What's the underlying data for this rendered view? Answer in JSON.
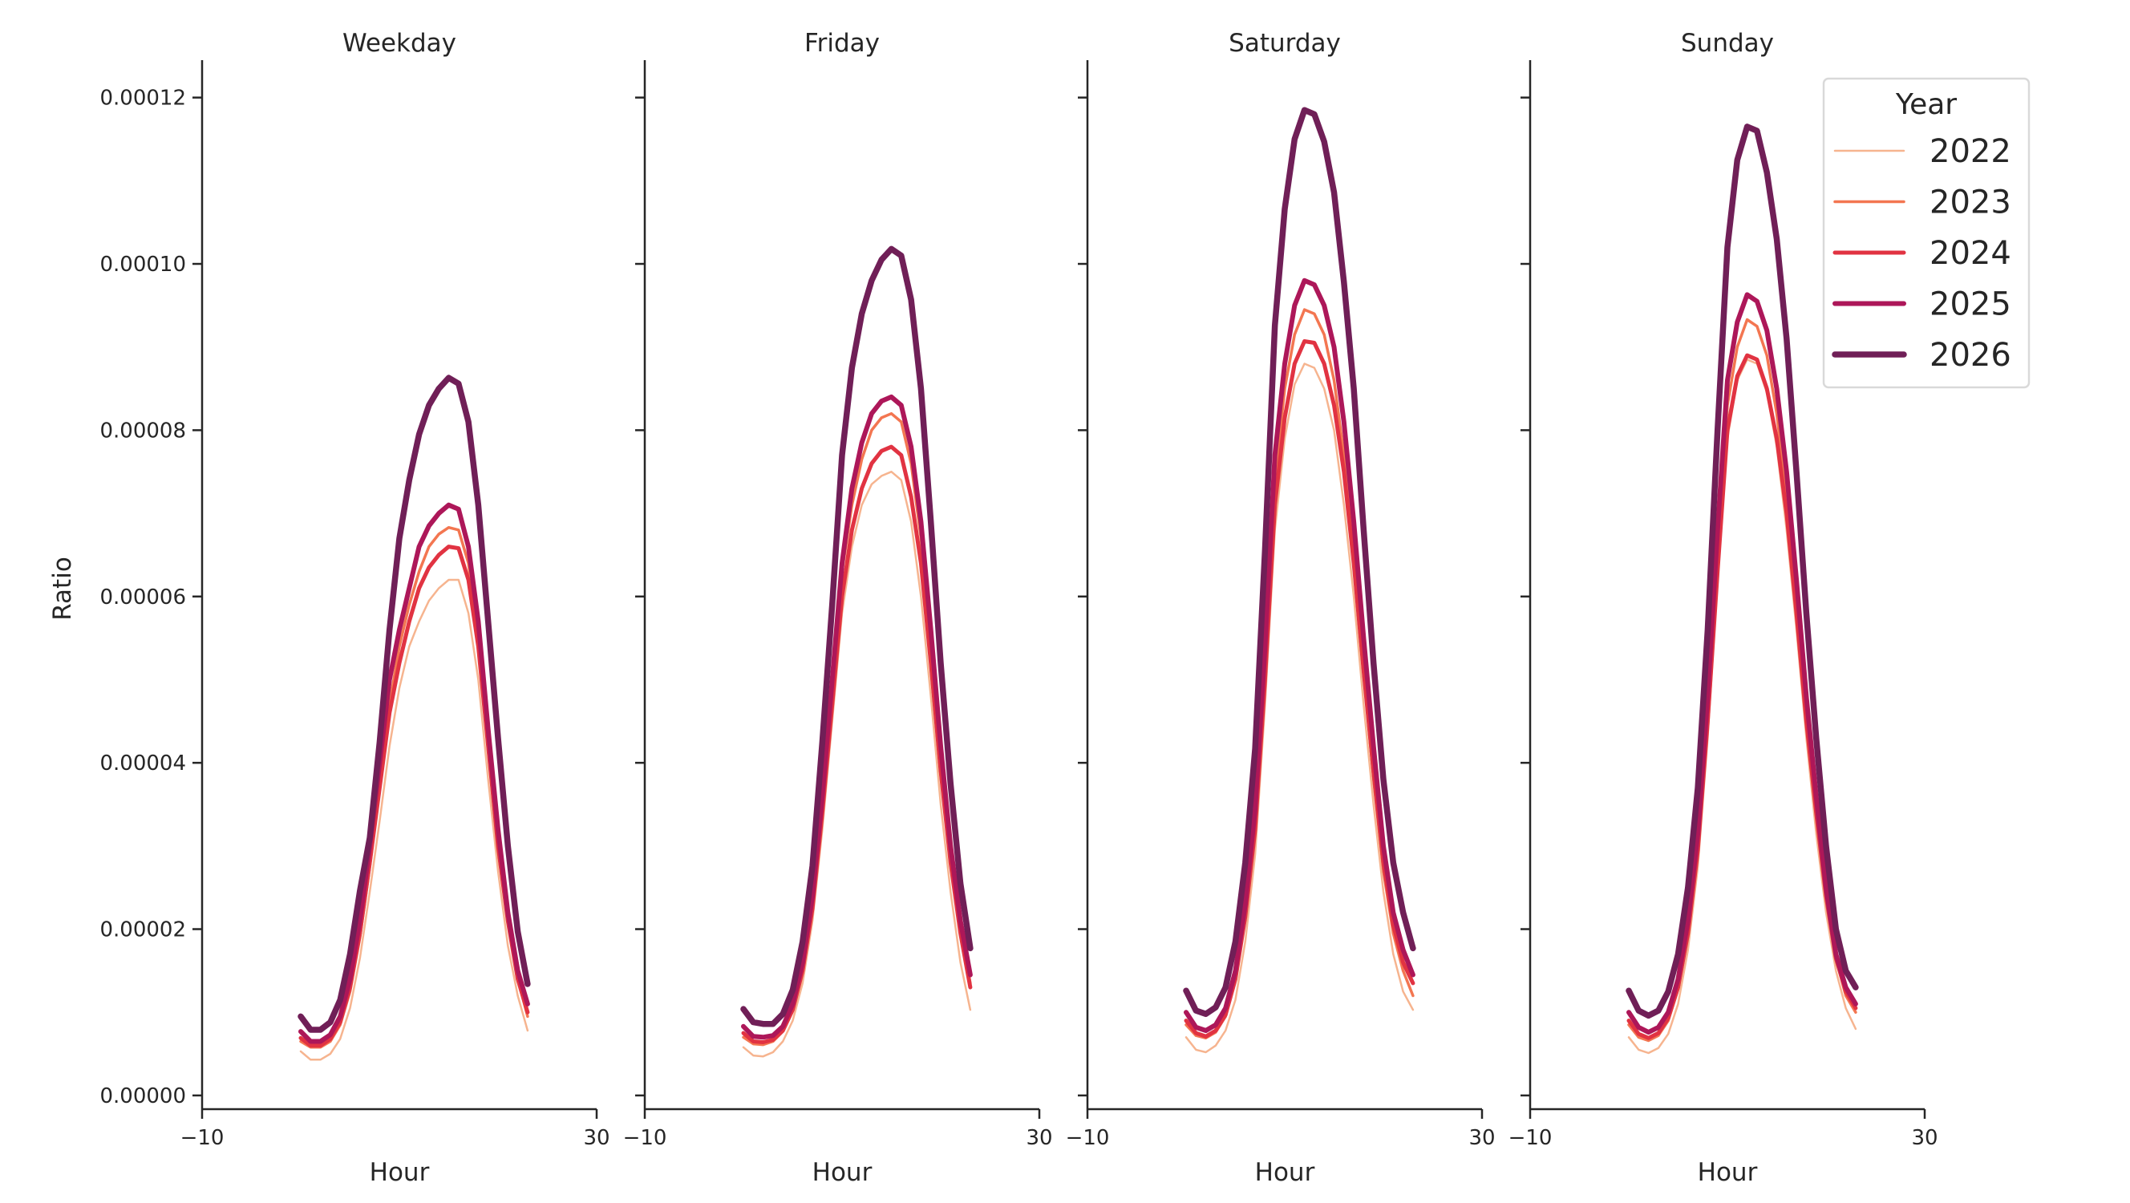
{
  "chart_data": {
    "type": "line",
    "ylabel": "Ratio",
    "xlabel": "Hour",
    "xlim": [
      -10,
      30
    ],
    "ylim": [
      -1.65e-06,
      0.0001245
    ],
    "xticks": [
      -10,
      30
    ],
    "xtick_labels": [
      "−10",
      "30"
    ],
    "yticks": [
      0,
      2e-05,
      4e-05,
      6e-05,
      8e-05,
      0.0001,
      0.00012
    ],
    "ytick_labels": [
      "0.00000",
      "0.00002",
      "0.00004",
      "0.00006",
      "0.00008",
      "0.00010",
      "0.00012"
    ],
    "grid": false,
    "x": [
      0,
      1,
      2,
      3,
      4,
      5,
      6,
      7,
      8,
      9,
      10,
      11,
      12,
      13,
      14,
      15,
      16,
      17,
      18,
      19,
      20,
      21,
      22,
      23
    ],
    "legend": {
      "title": "Year",
      "placement": "top-right"
    },
    "series_styles": [
      {
        "name": "2022",
        "color": "#f6b48f"
      },
      {
        "name": "2023",
        "color": "#f37651"
      },
      {
        "name": "2024",
        "color": "#e13342"
      },
      {
        "name": "2025",
        "color": "#ad1759"
      },
      {
        "name": "2026",
        "color": "#701f57"
      }
    ],
    "panels": [
      {
        "title": "Weekday",
        "series": [
          {
            "name": "2022",
            "values": [
              5.3e-06,
              4.3e-06,
              4.3e-06,
              5e-06,
              6.8e-06,
              1.05e-05,
              1.65e-05,
              2.45e-05,
              3.3e-05,
              4.2e-05,
              4.9e-05,
              5.4e-05,
              5.7e-05,
              5.95e-05,
              6.1e-05,
              6.2e-05,
              6.2e-05,
              5.8e-05,
              5e-05,
              3.8e-05,
              2.7e-05,
              1.8e-05,
              1.2e-05,
              7.8e-06
            ]
          },
          {
            "name": "2023",
            "values": [
              6.5e-06,
              5.8e-06,
              5.8e-06,
              6.5e-06,
              8.5e-06,
              1.25e-05,
              1.9e-05,
              2.75e-05,
              3.7e-05,
              4.7e-05,
              5.4e-05,
              5.9e-05,
              6.3e-05,
              6.6e-05,
              6.75e-05,
              6.83e-05,
              6.8e-05,
              6.4e-05,
              5.5e-05,
              4.2e-05,
              3e-05,
              2.1e-05,
              1.4e-05,
              9.5e-06
            ]
          },
          {
            "name": "2024",
            "values": [
              6.9e-06,
              6e-06,
              6e-06,
              6.8e-06,
              8.8e-06,
              1.3e-05,
              1.95e-05,
              2.8e-05,
              3.7e-05,
              4.6e-05,
              5.2e-05,
              5.7e-05,
              6.1e-05,
              6.35e-05,
              6.5e-05,
              6.6e-05,
              6.58e-05,
              6.2e-05,
              5.4e-05,
              4.2e-05,
              3e-05,
              2.1e-05,
              1.4e-05,
              1e-05
            ]
          },
          {
            "name": "2025",
            "values": [
              7.7e-06,
              6.5e-06,
              6.5e-06,
              7.3e-06,
              9.5e-06,
              1.4e-05,
              2.1e-05,
              3e-05,
              4e-05,
              5e-05,
              5.6e-05,
              6.1e-05,
              6.6e-05,
              6.85e-05,
              7e-05,
              7.1e-05,
              7.05e-05,
              6.6e-05,
              5.7e-05,
              4.4e-05,
              3.2e-05,
              2.2e-05,
              1.5e-05,
              1.1e-05
            ]
          },
          {
            "name": "2026",
            "values": [
              9.5e-06,
              7.9e-06,
              7.9e-06,
              8.8e-06,
              1.15e-05,
              1.7e-05,
              2.46e-05,
              3.1e-05,
              4.25e-05,
              5.6e-05,
              6.7e-05,
              7.4e-05,
              7.95e-05,
              8.3e-05,
              8.5e-05,
              8.63e-05,
              8.56e-05,
              8.1e-05,
              7.1e-05,
              5.7e-05,
              4.3e-05,
              3e-05,
              1.97e-05,
              1.34e-05
            ]
          }
        ]
      },
      {
        "title": "Friday",
        "series": [
          {
            "name": "2022",
            "values": [
              5.8e-06,
              4.8e-06,
              4.7e-06,
              5.2e-06,
              6.5e-06,
              9e-06,
              1.35e-05,
              2.1e-05,
              3.2e-05,
              4.5e-05,
              5.8e-05,
              6.6e-05,
              7.1e-05,
              7.35e-05,
              7.45e-05,
              7.5e-05,
              7.4e-05,
              6.9e-05,
              6e-05,
              4.8e-05,
              3.5e-05,
              2.45e-05,
              1.6e-05,
              1.03e-05
            ]
          },
          {
            "name": "2023",
            "values": [
              7e-06,
              6.2e-06,
              6.1e-06,
              6.5e-06,
              7.7e-06,
              1.03e-05,
              1.55e-05,
              2.35e-05,
              3.55e-05,
              4.9e-05,
              6.3e-05,
              7.1e-05,
              7.65e-05,
              8e-05,
              8.15e-05,
              8.2e-05,
              8.1e-05,
              7.6e-05,
              6.7e-05,
              5.4e-05,
              4e-05,
              2.85e-05,
              2e-05,
              1.35e-05
            ]
          },
          {
            "name": "2024",
            "values": [
              7.5e-06,
              6.5e-06,
              6.4e-06,
              6.7e-06,
              7.8e-06,
              1.03e-05,
              1.5e-05,
              2.25e-05,
              3.4e-05,
              4.7e-05,
              6e-05,
              6.8e-05,
              7.3e-05,
              7.6e-05,
              7.75e-05,
              7.8e-05,
              7.7e-05,
              7.2e-05,
              6.4e-05,
              5.2e-05,
              3.9e-05,
              2.8e-05,
              1.95e-05,
              1.3e-05
            ]
          },
          {
            "name": "2025",
            "values": [
              8.3e-06,
              7.1e-06,
              7e-06,
              7.2e-06,
              8.3e-06,
              1.1e-05,
              1.6e-05,
              2.4e-05,
              3.6e-05,
              5e-05,
              6.4e-05,
              7.3e-05,
              7.85e-05,
              8.2e-05,
              8.35e-05,
              8.4e-05,
              8.3e-05,
              7.8e-05,
              6.9e-05,
              5.6e-05,
              4.2e-05,
              3e-05,
              2.1e-05,
              1.45e-05
            ]
          },
          {
            "name": "2026",
            "values": [
              1.04e-05,
              8.8e-06,
              8.6e-06,
              8.6e-06,
              9.8e-06,
              1.27e-05,
              1.85e-05,
              2.76e-05,
              4.25e-05,
              5.9e-05,
              7.7e-05,
              8.75e-05,
              9.4e-05,
              9.8e-05,
              0.0001005,
              0.0001018,
              0.000101,
              9.57e-05,
              8.5e-05,
              6.9e-05,
              5.2e-05,
              3.75e-05,
              2.55e-05,
              1.77e-05
            ]
          }
        ]
      },
      {
        "title": "Saturday",
        "series": [
          {
            "name": "2022",
            "values": [
              7e-06,
              5.5e-06,
              5.2e-06,
              6e-06,
              7.8e-06,
              1.15e-05,
              1.85e-05,
              2.9e-05,
              4.7e-05,
              6.8e-05,
              7.9e-05,
              8.55e-05,
              8.8e-05,
              8.75e-05,
              8.5e-05,
              8e-05,
              7.1e-05,
              6e-05,
              4.7e-05,
              3.5e-05,
              2.45e-05,
              1.7e-05,
              1.25e-05,
              1.03e-05
            ]
          },
          {
            "name": "2023",
            "values": [
              8.5e-06,
              7.2e-06,
              6.9e-06,
              7.6e-06,
              9.5e-06,
              1.38e-05,
              2.15e-05,
              3.25e-05,
              5.1e-05,
              7.4e-05,
              8.5e-05,
              9.15e-05,
              9.45e-05,
              9.4e-05,
              9.15e-05,
              8.6e-05,
              7.7e-05,
              6.5e-05,
              5.1e-05,
              3.8e-05,
              2.7e-05,
              1.95e-05,
              1.5e-05,
              1.2e-05
            ]
          },
          {
            "name": "2024",
            "values": [
              9e-06,
              7.5e-06,
              7.1e-06,
              7.8e-06,
              9.7e-06,
              1.4e-05,
              2.15e-05,
              3.2e-05,
              5e-05,
              7.1e-05,
              8.15e-05,
              8.8e-05,
              9.07e-05,
              9.05e-05,
              8.8e-05,
              8.3e-05,
              7.5e-05,
              6.4e-05,
              5.1e-05,
              3.9e-05,
              2.8e-05,
              2.05e-05,
              1.6e-05,
              1.35e-05
            ]
          },
          {
            "name": "2025",
            "values": [
              1e-05,
              8.2e-06,
              7.8e-06,
              8.5e-06,
              1.05e-05,
              1.5e-05,
              2.3e-05,
              3.45e-05,
              5.4e-05,
              7.7e-05,
              8.8e-05,
              9.5e-05,
              9.8e-05,
              9.75e-05,
              9.5e-05,
              9e-05,
              8.1e-05,
              6.9e-05,
              5.5e-05,
              4.2e-05,
              3e-05,
              2.2e-05,
              1.75e-05,
              1.45e-05
            ]
          },
          {
            "name": "2026",
            "values": [
              1.26e-05,
              1.02e-05,
              9.8e-06,
              1.06e-05,
              1.3e-05,
              1.85e-05,
              2.8e-05,
              4.17e-05,
              6.56e-05,
              9.26e-05,
              0.0001066,
              0.000115,
              0.0001185,
              0.000118,
              0.0001147,
              0.0001086,
              9.78e-05,
              8.5e-05,
              6.8e-05,
              5.2e-05,
              3.8e-05,
              2.8e-05,
              2.2e-05,
              1.77e-05
            ]
          }
        ]
      },
      {
        "title": "Sunday",
        "series": [
          {
            "name": "2022",
            "values": [
              7e-06,
              5.5e-06,
              5.1e-06,
              5.7e-06,
              7.4e-06,
              1.1e-05,
              1.75e-05,
              2.75e-05,
              4.3e-05,
              6.2e-05,
              7.9e-05,
              8.6e-05,
              8.85e-05,
              8.8e-05,
              8.45e-05,
              7.8e-05,
              6.8e-05,
              5.6e-05,
              4.3e-05,
              3.15e-05,
              2.2e-05,
              1.5e-05,
              1.05e-05,
              8e-06
            ]
          },
          {
            "name": "2023",
            "values": [
              8.5e-06,
              7e-06,
              6.6e-06,
              7.2e-06,
              9e-06,
              1.28e-05,
              1.95e-05,
              3e-05,
              4.6e-05,
              6.5e-05,
              8.3e-05,
              9e-05,
              9.33e-05,
              9.25e-05,
              8.9e-05,
              8.2e-05,
              7.2e-05,
              5.95e-05,
              4.6e-05,
              3.4e-05,
              2.4e-05,
              1.65e-05,
              1.2e-05,
              1e-05
            ]
          },
          {
            "name": "2024",
            "values": [
              9e-06,
              7.4e-06,
              6.9e-06,
              7.5e-06,
              9.3e-06,
              1.3e-05,
              1.95e-05,
              2.95e-05,
              4.5e-05,
              6.3e-05,
              8e-05,
              8.65e-05,
              8.9e-05,
              8.85e-05,
              8.5e-05,
              7.9e-05,
              7e-05,
              5.8e-05,
              4.5e-05,
              3.4e-05,
              2.4e-05,
              1.65e-05,
              1.25e-05,
              1.05e-05
            ]
          },
          {
            "name": "2025",
            "values": [
              1e-05,
              8.2e-06,
              7.6e-06,
              8.2e-06,
              1e-05,
              1.4e-05,
              2.1e-05,
              3.15e-05,
              4.8e-05,
              6.8e-05,
              8.6e-05,
              9.3e-05,
              9.63e-05,
              9.55e-05,
              9.2e-05,
              8.5e-05,
              7.5e-05,
              6.2e-05,
              4.8e-05,
              3.6e-05,
              2.5e-05,
              1.7e-05,
              1.3e-05,
              1.1e-05
            ]
          },
          {
            "name": "2026",
            "values": [
              1.26e-05,
              1.02e-05,
              9.6e-06,
              1.02e-05,
              1.25e-05,
              1.7e-05,
              2.5e-05,
              3.7e-05,
              5.6e-05,
              8e-05,
              0.000102,
              0.0001125,
              0.0001165,
              0.000116,
              0.000111,
              0.000103,
              9.1e-05,
              7.5e-05,
              5.8e-05,
              4.3e-05,
              3e-05,
              2e-05,
              1.5e-05,
              1.3e-05
            ]
          }
        ]
      }
    ]
  }
}
